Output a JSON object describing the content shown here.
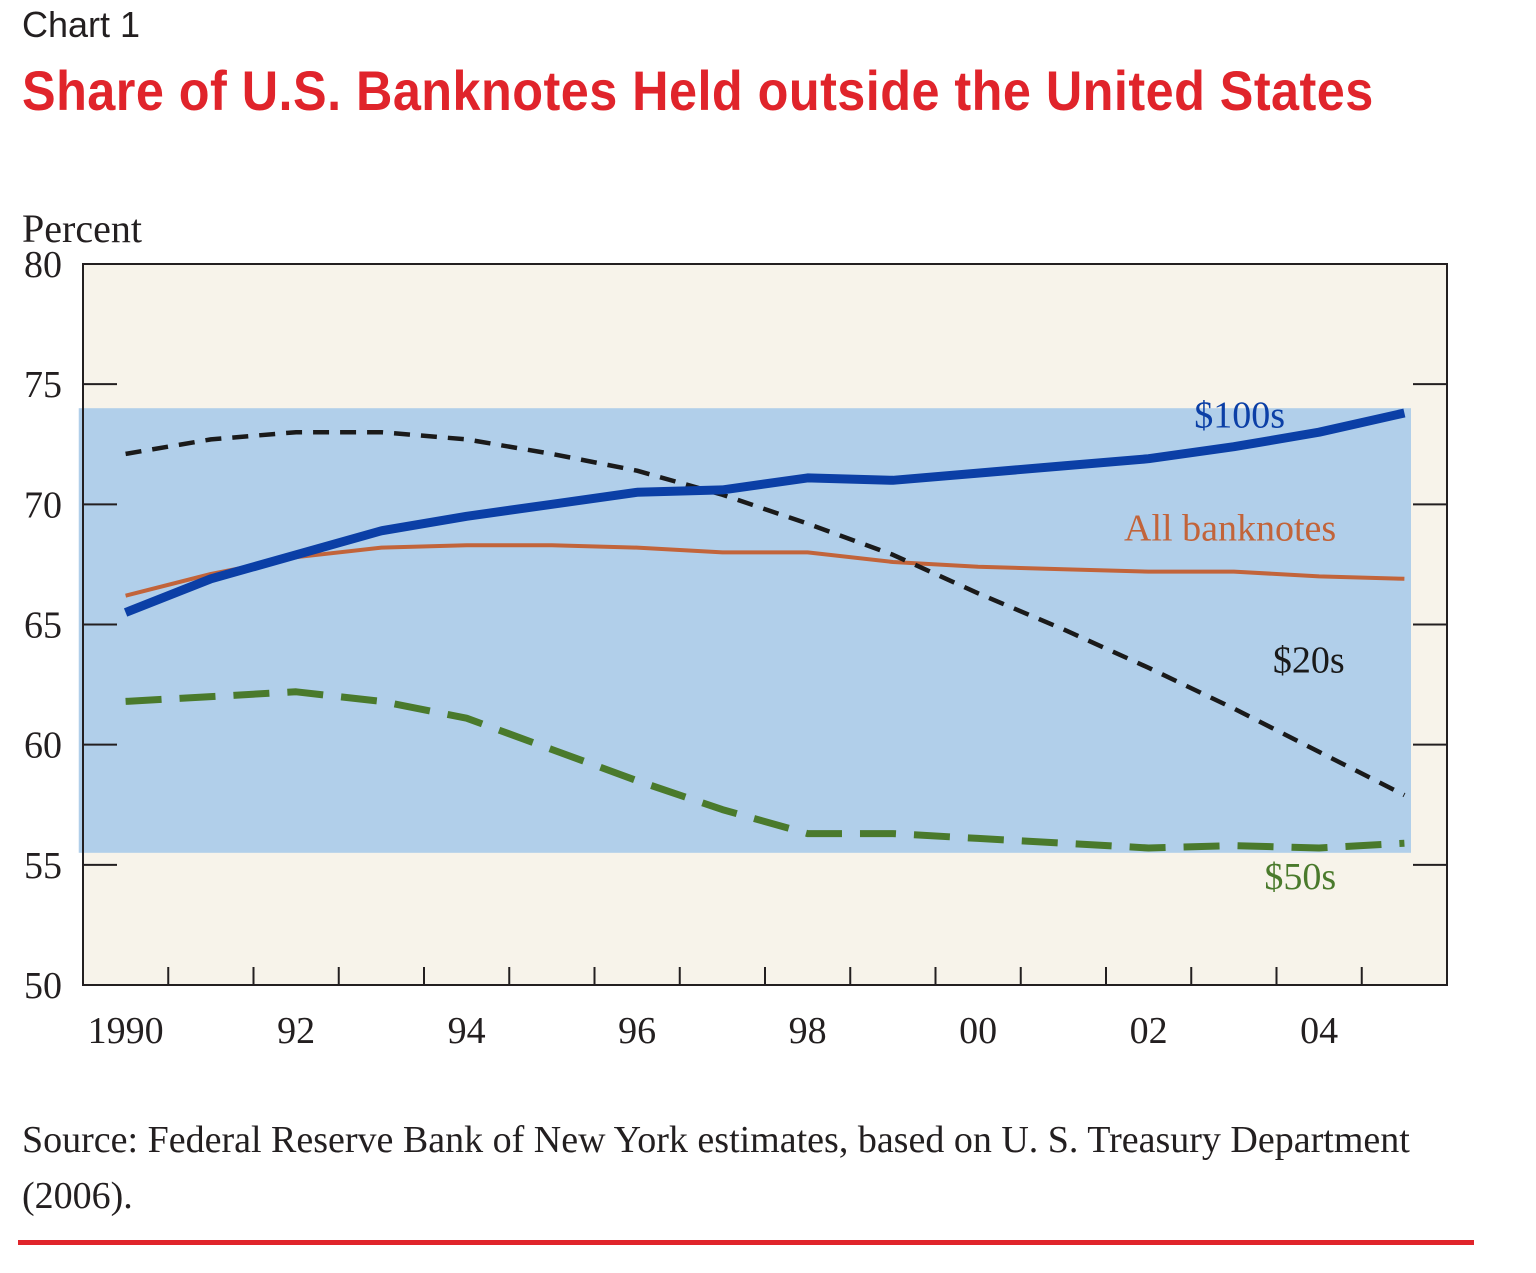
{
  "header": {
    "chart_number": "Chart 1",
    "title": "Share of U.S. Banknotes Held outside the United States"
  },
  "footer": {
    "source": "Source: Federal Reserve Bank of New York estimates, based on U. S. Treasury Department (2006)."
  },
  "colors": {
    "title_red": "#e0242b",
    "plot_background": "#f7f3ea",
    "band": "#b1cfea",
    "s100": "#0b3fa6",
    "all": "#c2643a",
    "s20": "#1a1a1a",
    "s50": "#4a7a2c"
  },
  "chart_data": {
    "type": "line",
    "title": "Share of U.S. Banknotes Held outside the United States",
    "ylabel": "Percent",
    "xlabel": "",
    "ylim": [
      50,
      80
    ],
    "xlim": [
      1989.5,
      2005.5
    ],
    "yticks": [
      50,
      55,
      60,
      65,
      70,
      75,
      80
    ],
    "ytick_labels": [
      "50",
      "55",
      "60",
      "65",
      "70",
      "75",
      "80"
    ],
    "xtick_positions": [
      1990.5,
      1991.5,
      1992.5,
      1993.5,
      1994.5,
      1995.5,
      1996.5,
      1997.5,
      1998.5,
      1999.5,
      2000.5,
      2001.5,
      2002.5,
      2003.5,
      2004.5
    ],
    "xlabels": [
      {
        "label": "1990",
        "x": 1990
      },
      {
        "label": "92",
        "x": 1992
      },
      {
        "label": "94",
        "x": 1994
      },
      {
        "label": "96",
        "x": 1996
      },
      {
        "label": "98",
        "x": 1998
      },
      {
        "label": "00",
        "x": 2000
      },
      {
        "label": "02",
        "x": 2002
      },
      {
        "label": "04",
        "x": 2004
      }
    ],
    "band": {
      "x": [
        1989.45,
        2005.5
      ],
      "y": [
        55.5,
        74
      ]
    },
    "x": [
      1990,
      1991,
      1992,
      1993,
      1994,
      1995,
      1996,
      1997,
      1998,
      1999,
      2000,
      2001,
      2002,
      2003,
      2004,
      2005
    ],
    "series": [
      {
        "key": "s100",
        "name": "$100s",
        "label_anchor": [
          2003.6,
          73.2
        ],
        "values": [
          65.5,
          66.9,
          67.9,
          68.9,
          69.5,
          70.0,
          70.5,
          70.6,
          71.1,
          71.0,
          71.3,
          71.6,
          71.9,
          72.4,
          73.0,
          73.8
        ]
      },
      {
        "key": "all",
        "name": "All banknotes",
        "label_anchor": [
          2004.2,
          68.5
        ],
        "values": [
          66.2,
          67.1,
          67.8,
          68.2,
          68.3,
          68.3,
          68.2,
          68.0,
          68.0,
          67.6,
          67.4,
          67.3,
          67.2,
          67.2,
          67.0,
          66.9
        ]
      },
      {
        "key": "s20",
        "name": "$20s",
        "label_anchor": [
          2004.3,
          63.0
        ],
        "values": [
          72.1,
          72.7,
          73.0,
          73.0,
          72.7,
          72.1,
          71.4,
          70.4,
          69.2,
          67.9,
          66.3,
          64.8,
          63.2,
          61.5,
          59.7,
          57.9
        ]
      },
      {
        "key": "s50",
        "name": "$50s",
        "label_anchor": [
          2004.2,
          54.0
        ],
        "values": [
          61.8,
          62.0,
          62.2,
          61.8,
          61.1,
          59.8,
          58.5,
          57.3,
          56.3,
          56.3,
          56.1,
          55.9,
          55.7,
          55.8,
          55.7,
          55.9
        ]
      }
    ]
  }
}
